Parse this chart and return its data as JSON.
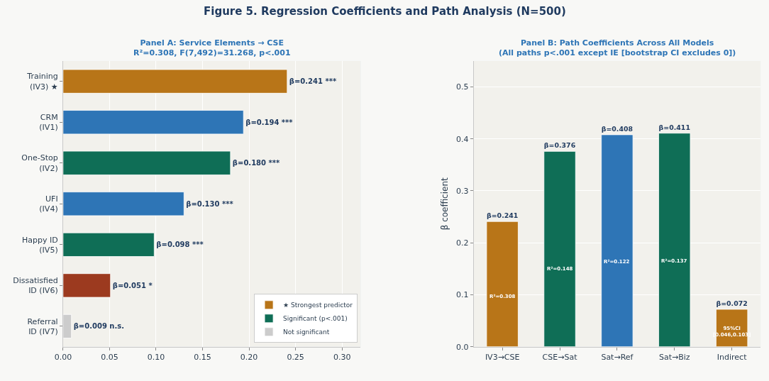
{
  "chart_data": [
    {
      "type": "bar",
      "orientation": "horizontal",
      "stacked": true,
      "title": "Panel A: Service Elements → CSE",
      "subtitle": "R²=0.308, F(7,492)=31.268, p<.001",
      "annotations": [
        "Figure 5. Regression Coefficients and Path Analysis (N=500)"
      ],
      "categories": [
        "Training\n(IV3) ★",
        "CRM\n(IV1)",
        "One-Stop\n(IV2)",
        "UFI\n(IV4)",
        "Happy ID\n(IV5)",
        "Dissatisfied\nID (IV6)",
        "Referral\nID (IV7)"
      ],
      "series": [
        {
          "name": "★ Strongest predictor",
          "color": "#b87518",
          "values": [
            0.241,
            null,
            null,
            null,
            null,
            null,
            null
          ],
          "value_labels": [
            "β=0.241 ***",
            null,
            null,
            null,
            null,
            null,
            null
          ]
        },
        {
          "name": "Significant (p<.001)",
          "color": "#0f6e56",
          "values": [
            null,
            null,
            0.18,
            null,
            0.098,
            null,
            null
          ],
          "value_labels": [
            null,
            null,
            "β=0.180 ***",
            null,
            "β=0.098 ***",
            null,
            null
          ]
        },
        {
          "name": "Not significant",
          "color": "#cccccc",
          "values": [
            null,
            null,
            null,
            null,
            null,
            null,
            0.009
          ],
          "value_labels": [
            null,
            null,
            null,
            null,
            null,
            null,
            "β=0.009 n.s."
          ]
        },
        {
          "colors": [
            "#2e75b6",
            "#2e75b6",
            "#2e75b6",
            "#2e75b6",
            "#2e75b6",
            "#9c3a1f",
            "#2e75b6"
          ],
          "values": [
            null,
            0.194,
            null,
            0.13,
            null,
            0.051,
            null
          ],
          "value_labels": [
            null,
            "β=0.194 ***",
            null,
            "β=0.130 ***",
            null,
            "β=0.051 *",
            null
          ]
        }
      ],
      "xlim": [
        0,
        0.32
      ],
      "xticks": [
        {
          "value": 0,
          "label": "0.00"
        },
        {
          "value": 0.05,
          "label": "0.05"
        },
        {
          "value": 0.1,
          "label": "0.10"
        },
        {
          "value": 0.15,
          "label": "0.15"
        },
        {
          "value": 0.2,
          "label": "0.20"
        },
        {
          "value": 0.25,
          "label": "0.25"
        },
        {
          "value": 0.3,
          "label": "0.30"
        }
      ],
      "grid": "x",
      "legend": "bottom right"
    },
    {
      "type": "bar",
      "title": "Panel B: Path Coefficients Across All Models",
      "subtitle": "(All paths p<.001 except IE [bootstrap CI excludes 0])",
      "ylabel": "β coefficient",
      "categories": [
        "IV3→CSE",
        "CSE→Sat",
        "Sat→Ref",
        "Sat→Biz",
        "Indirect"
      ],
      "values": [
        0.241,
        0.376,
        0.408,
        0.411,
        0.072
      ],
      "colors": [
        "#b87518",
        "#0f6e56",
        "#2e75b6",
        "#0f6e56",
        "#b87518"
      ],
      "value_labels": [
        "β=0.241",
        "β=0.376",
        "β=0.408",
        "β=0.411",
        "β=0.072"
      ],
      "annotations": [
        "R²=0.308",
        "R²=0.148",
        "R²=0.122",
        "R²=0.137",
        "95%CI\n[0.046,0.103]"
      ],
      "ylim": [
        0,
        0.55
      ],
      "yticks": [
        {
          "value": 0,
          "label": "0.0"
        },
        0.1,
        0.2,
        0.3,
        0.4,
        0.5
      ],
      "grid": "y"
    }
  ]
}
